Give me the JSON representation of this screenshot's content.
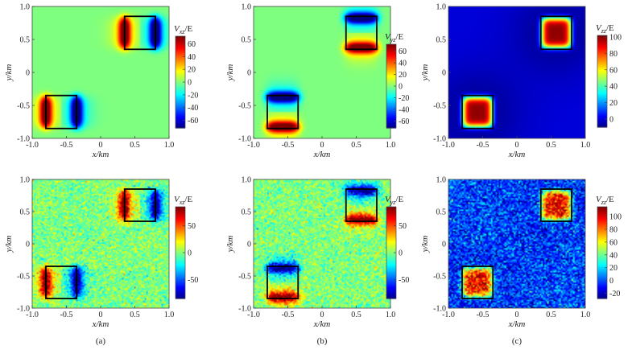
{
  "chart_data": [
    {
      "type": "heatmap",
      "id": "a-top",
      "colorbar_label": "Vxz/E",
      "cb_main": "V",
      "cb_sub": "xz",
      "cb_tail": "/E",
      "xlabel": "x/km",
      "ylabel": "y/km",
      "xlim": [
        -1.0,
        1.0
      ],
      "ylim": [
        -1.0,
        1.0
      ],
      "x_ticks": [
        "-1.0",
        "-0.5",
        "0",
        "0.5",
        "1.0"
      ],
      "y_ticks": [
        "-1.0",
        "-0.5",
        "0",
        "0.5",
        "1.0"
      ],
      "cbar_range": [
        -72,
        72
      ],
      "cbar_ticks": [
        "60",
        "40",
        "20",
        "0",
        "-20",
        "-40",
        "-60"
      ],
      "cbar_tick_values": [
        60,
        40,
        20,
        0,
        -20,
        -40,
        -60
      ],
      "boxes": [
        {
          "x": [
            -0.8,
            -0.35
          ],
          "y": [
            -0.85,
            -0.35
          ]
        },
        {
          "x": [
            0.35,
            0.8
          ],
          "y": [
            0.35,
            0.85
          ]
        }
      ],
      "pattern": "xz",
      "noisy": false
    },
    {
      "type": "heatmap",
      "id": "b-top",
      "colorbar_label": "Vyz/E",
      "cb_main": "V",
      "cb_sub": "yz",
      "cb_tail": "/E",
      "xlabel": "x/km",
      "ylabel": "y/km",
      "xlim": [
        -1.0,
        1.0
      ],
      "ylim": [
        -1.0,
        1.0
      ],
      "x_ticks": [
        "-1.0",
        "-0.5",
        "0",
        "0.5",
        "1.0"
      ],
      "y_ticks": [
        "-1.0",
        "-0.5",
        "0",
        "0.5",
        "1.0"
      ],
      "cbar_range": [
        -72,
        72
      ],
      "cbar_ticks": [
        "60",
        "40",
        "20",
        "0",
        "-20",
        "-40",
        "-60"
      ],
      "cbar_tick_values": [
        60,
        40,
        20,
        0,
        -20,
        -40,
        -60
      ],
      "boxes": [
        {
          "x": [
            -0.8,
            -0.35
          ],
          "y": [
            -0.85,
            -0.35
          ]
        },
        {
          "x": [
            0.35,
            0.8
          ],
          "y": [
            0.35,
            0.85
          ]
        }
      ],
      "pattern": "yz",
      "noisy": false
    },
    {
      "type": "heatmap",
      "id": "c-top",
      "colorbar_label": "Vzz/E",
      "cb_main": "V",
      "cb_sub": "zz",
      "cb_tail": "/E",
      "xlabel": "x/km",
      "ylabel": "y/km",
      "xlim": [
        -1.0,
        1.0
      ],
      "ylim": [
        -1.0,
        1.0
      ],
      "x_ticks": [
        "-1.0",
        "-0.5",
        "0",
        "0.5",
        "1.0"
      ],
      "y_ticks": [
        "-1.0",
        "-0.5",
        "0",
        "0.5",
        "1.0"
      ],
      "cbar_range": [
        -10,
        102
      ],
      "cbar_ticks": [
        "100",
        "80",
        "60",
        "40",
        "20",
        "0"
      ],
      "cbar_tick_values": [
        100,
        80,
        60,
        40,
        20,
        0
      ],
      "boxes": [
        {
          "x": [
            -0.8,
            -0.35
          ],
          "y": [
            -0.85,
            -0.35
          ]
        },
        {
          "x": [
            0.35,
            0.8
          ],
          "y": [
            0.35,
            0.85
          ]
        }
      ],
      "pattern": "zz",
      "noisy": false
    },
    {
      "type": "heatmap",
      "id": "a-bottom",
      "colorbar_label": "Vxz/E",
      "cb_main": "V",
      "cb_sub": "xz",
      "cb_tail": "/E",
      "xlabel": "x/km",
      "ylabel": "y/km",
      "xlim": [
        -1.0,
        1.0
      ],
      "ylim": [
        -1.0,
        1.0
      ],
      "x_ticks": [
        "-1.0",
        "-0.5",
        "0",
        "0.5",
        "1.0"
      ],
      "y_ticks": [
        "-1.0",
        "-0.5",
        "0",
        "0.5",
        "1.0"
      ],
      "cbar_range": [
        -85,
        85
      ],
      "cbar_ticks": [
        "50",
        "0",
        "-50"
      ],
      "cbar_tick_values": [
        50,
        0,
        -50
      ],
      "boxes": [
        {
          "x": [
            -0.8,
            -0.35
          ],
          "y": [
            -0.85,
            -0.35
          ]
        },
        {
          "x": [
            0.35,
            0.8
          ],
          "y": [
            0.35,
            0.85
          ]
        }
      ],
      "pattern": "xz",
      "noisy": true,
      "caption": "(a)"
    },
    {
      "type": "heatmap",
      "id": "b-bottom",
      "colorbar_label": "Vyz/E",
      "cb_main": "V",
      "cb_sub": "yz",
      "cb_tail": "/E",
      "xlabel": "x/km",
      "ylabel": "y/km",
      "xlim": [
        -1.0,
        1.0
      ],
      "ylim": [
        -1.0,
        1.0
      ],
      "x_ticks": [
        "-1.0",
        "-0.5",
        "0",
        "0.5",
        "1.0"
      ],
      "y_ticks": [
        "-1.0",
        "-0.5",
        "0",
        "0.5",
        "1.0"
      ],
      "cbar_range": [
        -85,
        85
      ],
      "cbar_ticks": [
        "50",
        "0",
        "-50"
      ],
      "cbar_tick_values": [
        50,
        0,
        -50
      ],
      "boxes": [
        {
          "x": [
            -0.8,
            -0.35
          ],
          "y": [
            -0.85,
            -0.35
          ]
        },
        {
          "x": [
            0.35,
            0.8
          ],
          "y": [
            0.35,
            0.85
          ]
        }
      ],
      "pattern": "yz",
      "noisy": true,
      "caption": "(b)"
    },
    {
      "type": "heatmap",
      "id": "c-bottom",
      "colorbar_label": "Vzz/E",
      "cb_main": "V",
      "cb_sub": "zz",
      "cb_tail": "/E",
      "xlabel": "x/km",
      "ylabel": "y/km",
      "xlim": [
        -1.0,
        1.0
      ],
      "ylim": [
        -1.0,
        1.0
      ],
      "x_ticks": [
        "-1.0",
        "-0.5",
        "0",
        "0.5",
        "1.0"
      ],
      "y_ticks": [
        "-1.0",
        "-0.5",
        "0",
        "0.5",
        "1.0"
      ],
      "cbar_range": [
        -28,
        115
      ],
      "cbar_ticks": [
        "100",
        "80",
        "60",
        "40",
        "20",
        "0",
        "-20"
      ],
      "cbar_tick_values": [
        100,
        80,
        60,
        40,
        20,
        0,
        -20
      ],
      "boxes": [
        {
          "x": [
            -0.8,
            -0.35
          ],
          "y": [
            -0.85,
            -0.35
          ]
        },
        {
          "x": [
            0.35,
            0.8
          ],
          "y": [
            0.35,
            0.85
          ]
        }
      ],
      "pattern": "zz",
      "noisy": true,
      "caption": "(c)"
    }
  ]
}
